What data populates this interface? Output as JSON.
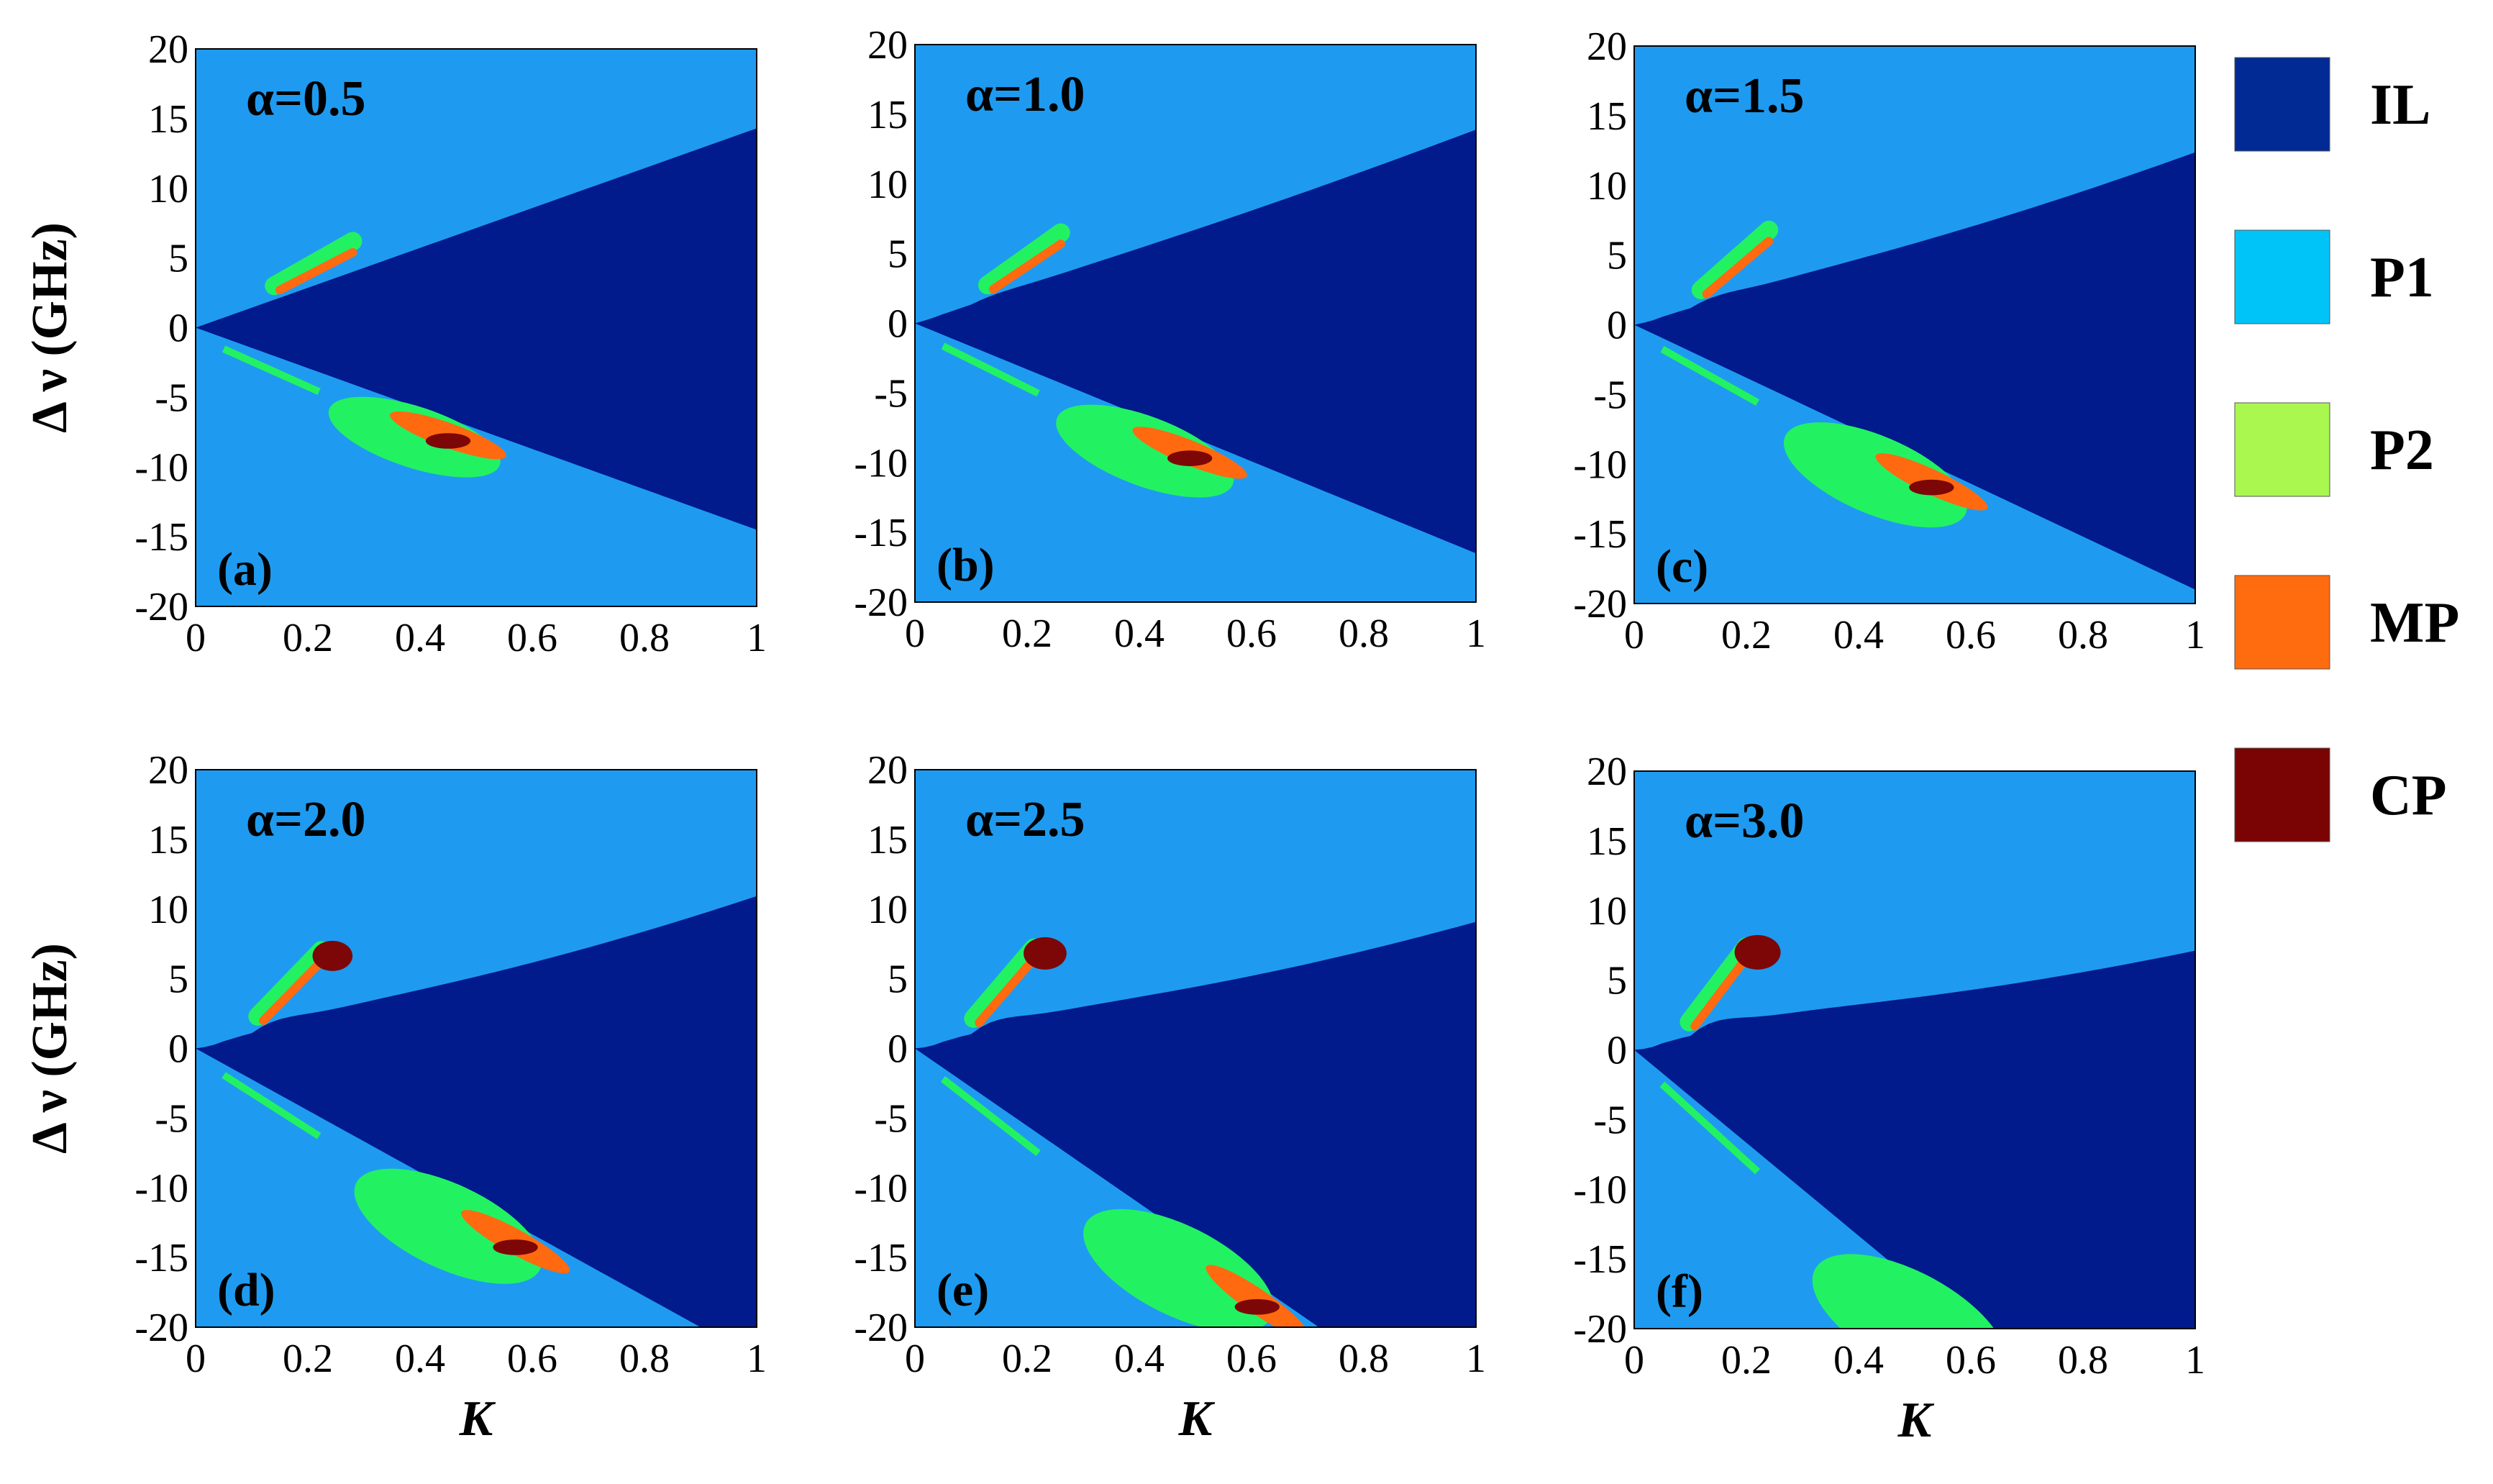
{
  "colors": {
    "background": "#1e9bf0",
    "IL": "#011a8c",
    "P1": "#00c2f7",
    "P2": "#a9f74e",
    "P2_shade": "#22f262",
    "MP": "#ff6a10",
    "CP": "#7d0707"
  },
  "legend": [
    {
      "label": "IL",
      "color": "#022a94"
    },
    {
      "label": "P1",
      "color": "#00c4f8"
    },
    {
      "label": "P2",
      "color": "#aaf84f"
    },
    {
      "label": "MP",
      "color": "#ff6c10"
    },
    {
      "label": "CP",
      "color": "#7a0404"
    }
  ],
  "axes": {
    "ylabel": "Δ ν (GHz)",
    "xlabel": "K",
    "xticks": [
      "0",
      "0.2",
      "0.4",
      "0.6",
      "0.8",
      "1"
    ],
    "yticks": [
      "20",
      "15",
      "10",
      "5",
      "0",
      "-5",
      "-10",
      "-15",
      "-20"
    ]
  },
  "chart_data": [
    {
      "type": "heatmap",
      "panel_label": "(a)",
      "annotation": "α=0.5",
      "alpha": 0.5,
      "xlim": [
        0,
        1
      ],
      "ylim": [
        -20,
        20
      ],
      "il_upper_k1": 14.3,
      "il_lower_k1": -14.5,
      "hook_strength": 0.0
    },
    {
      "type": "heatmap",
      "panel_label": "(b)",
      "annotation": "α=1.0",
      "alpha": 1.0,
      "xlim": [
        0,
        1
      ],
      "ylim": [
        -20,
        20
      ],
      "il_upper_k1": 14.0,
      "il_lower_k1": -16.5,
      "hook_strength": 0.25
    },
    {
      "type": "heatmap",
      "panel_label": "(c)",
      "annotation": "α=1.5",
      "alpha": 1.5,
      "xlim": [
        0,
        1
      ],
      "ylim": [
        -20,
        20
      ],
      "il_upper_k1": 12.5,
      "il_lower_k1": -19.0,
      "hook_strength": 0.5
    },
    {
      "type": "heatmap",
      "panel_label": "(d)",
      "annotation": "α=2.0",
      "alpha": 2.0,
      "xlim": [
        0,
        1
      ],
      "ylim": [
        -20,
        20
      ],
      "il_upper_k1": 11.0,
      "il_lower_k1": -20.0,
      "hook_strength": 0.7,
      "il_lower_hits_min_at": 0.9
    },
    {
      "type": "heatmap",
      "panel_label": "(e)",
      "annotation": "α=2.5",
      "alpha": 2.5,
      "xlim": [
        0,
        1
      ],
      "ylim": [
        -20,
        20
      ],
      "il_upper_k1": 9.0,
      "il_lower_k1": -20.0,
      "hook_strength": 0.85,
      "il_lower_hits_min_at": 0.72
    },
    {
      "type": "heatmap",
      "panel_label": "(f)",
      "annotation": "α=3.0",
      "alpha": 3.0,
      "xlim": [
        0,
        1
      ],
      "ylim": [
        -20,
        20
      ],
      "il_upper_k1": 6.8,
      "il_lower_k1": -20.0,
      "hook_strength": 1.0,
      "il_lower_hits_min_at": 0.6
    }
  ]
}
